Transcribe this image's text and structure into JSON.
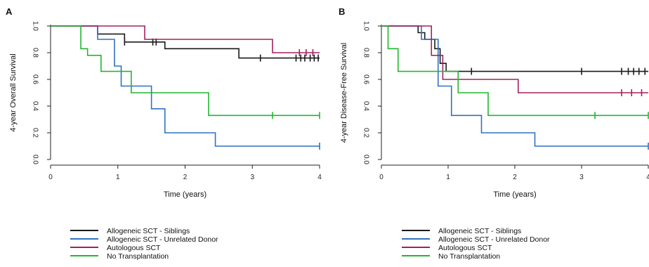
{
  "colors": {
    "siblings": "#1a1a1a",
    "unrelated": "#2e72c0",
    "autologous": "#a3205f",
    "none": "#22b62f"
  },
  "chart_data": [
    {
      "type": "line",
      "step": "post",
      "panel": "A",
      "xlabel": "Time (years)",
      "ylabel": "4-year Overall Survival",
      "xlim": [
        0,
        4
      ],
      "ylim": [
        0,
        1
      ],
      "xticks": [
        0,
        1,
        2,
        3,
        4
      ],
      "yticks": [
        0.0,
        0.2,
        0.4,
        0.6,
        0.8,
        1.0
      ],
      "grid": false,
      "legend": "bottom",
      "series": [
        {
          "name": "Allogeneic SCT - Siblings",
          "color_key": "siblings",
          "x": [
            0,
            0.7,
            1.1,
            1.7,
            2.8,
            4.0
          ],
          "y": [
            1.0,
            0.94,
            0.88,
            0.83,
            0.76,
            0.76
          ],
          "censor_x": [
            1.1,
            1.52,
            1.57,
            3.12,
            3.65,
            3.72,
            3.78,
            3.86,
            3.92,
            3.98
          ]
        },
        {
          "name": "Allogeneic SCT - Unrelated Donor",
          "color_key": "unrelated",
          "x": [
            0,
            0.7,
            0.95,
            1.05,
            1.5,
            1.7,
            2.45,
            4.0
          ],
          "y": [
            1.0,
            0.9,
            0.7,
            0.55,
            0.38,
            0.2,
            0.1,
            0.1
          ],
          "censor_x": [
            4.0
          ]
        },
        {
          "name": "Autologous SCT",
          "color_key": "autologous",
          "x": [
            0,
            1.4,
            3.3,
            4.0
          ],
          "y": [
            1.0,
            0.9,
            0.8,
            0.8
          ],
          "censor_x": [
            3.7,
            3.8,
            3.9
          ]
        },
        {
          "name": "No Transplantation",
          "color_key": "none",
          "x": [
            0,
            0.45,
            0.55,
            0.75,
            1.2,
            2.35,
            4.0
          ],
          "y": [
            1.0,
            0.83,
            0.78,
            0.66,
            0.5,
            0.33,
            0.33
          ],
          "censor_x": [
            3.3,
            4.0
          ]
        }
      ]
    },
    {
      "type": "line",
      "step": "post",
      "panel": "B",
      "xlabel": "Time (years)",
      "ylabel": "4-year Disease-Free Survival",
      "xlim": [
        0,
        4
      ],
      "ylim": [
        0,
        1
      ],
      "xticks": [
        0,
        1,
        2,
        3,
        4
      ],
      "yticks": [
        0.0,
        0.2,
        0.4,
        0.6,
        0.8,
        1.0
      ],
      "grid": false,
      "legend": "bottom",
      "series": [
        {
          "name": "Allogeneic SCT - Siblings",
          "color_key": "siblings",
          "x": [
            0,
            0.55,
            0.65,
            0.8,
            0.88,
            0.97,
            4.0
          ],
          "y": [
            1.0,
            0.95,
            0.9,
            0.83,
            0.72,
            0.66,
            0.66
          ],
          "censor_x": [
            1.35,
            3.0,
            3.6,
            3.7,
            3.78,
            3.86,
            3.95
          ]
        },
        {
          "name": "Allogeneic SCT - Unrelated Donor",
          "color_key": "unrelated",
          "x": [
            0,
            0.6,
            0.85,
            1.05,
            1.5,
            2.3,
            4.0
          ],
          "y": [
            1.0,
            0.9,
            0.55,
            0.33,
            0.2,
            0.1,
            0.1
          ],
          "censor_x": [
            4.0
          ]
        },
        {
          "name": "Autologous SCT",
          "color_key": "autologous",
          "x": [
            0,
            0.75,
            0.92,
            2.05,
            4.0
          ],
          "y": [
            1.0,
            0.78,
            0.6,
            0.5,
            0.5
          ],
          "censor_x": [
            3.6,
            3.75,
            3.9
          ]
        },
        {
          "name": "No Transplantation",
          "color_key": "none",
          "x": [
            0,
            0.1,
            0.25,
            1.15,
            1.6,
            4.0
          ],
          "y": [
            1.0,
            0.83,
            0.66,
            0.5,
            0.33,
            0.33
          ],
          "censor_x": [
            3.2,
            4.0
          ]
        }
      ]
    }
  ]
}
